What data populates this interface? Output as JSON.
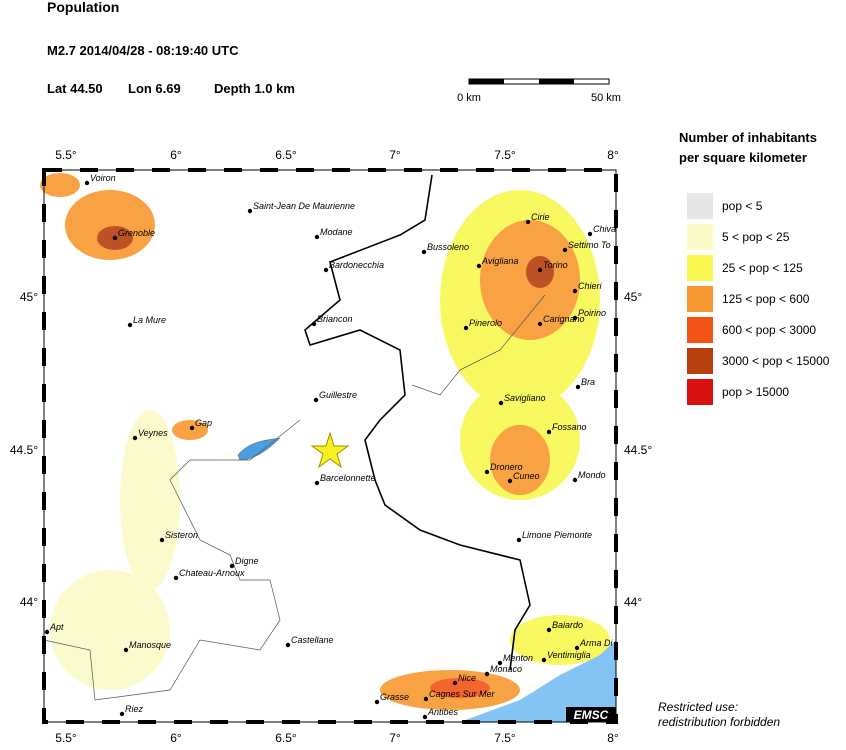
{
  "header": {
    "title": "Population",
    "event": "M2.7  2014/04/28 - 08:19:40 UTC",
    "lat": "Lat 44.50",
    "lon": "Lon 6.69",
    "depth": "Depth  1.0 km"
  },
  "scale": {
    "start": "0 km",
    "end": "50 km"
  },
  "legend": {
    "title": [
      "Number of inhabitants",
      "per square kilometer"
    ],
    "items": [
      {
        "label": "pop < 5",
        "color": "#e6e6e6"
      },
      {
        "label": "5 < pop < 25",
        "color": "#fafac8"
      },
      {
        "label": "25 < pop < 125",
        "color": "#f8f850"
      },
      {
        "label": "125 < pop < 600",
        "color": "#f89830"
      },
      {
        "label": "600 < pop < 3000",
        "color": "#f25418"
      },
      {
        "label": "3000 < pop < 15000",
        "color": "#b84010"
      },
      {
        "label": "pop > 15000",
        "color": "#d81010"
      }
    ]
  },
  "lon_labels": [
    "5.5°",
    "6°",
    "6.5°",
    "7°",
    "7.5°",
    "8°"
  ],
  "lat_labels": [
    "45°",
    "44.5°",
    "44°"
  ],
  "cities": [
    "Voiron",
    "Grenoble",
    "Saint-Jean De Maurienne",
    "Modane",
    "Bardonecchia",
    "La Mure",
    "Briancon",
    "Guillestre",
    "Veynes",
    "Gap",
    "Barcelonnette",
    "Sisteron",
    "Digne",
    "Chateau-Arnoux",
    "Apt",
    "Manosque",
    "Castellane",
    "Riez",
    "Grasse",
    "Cagnes Sur Mer",
    "Antibes",
    "Nice",
    "Monaco",
    "Menton",
    "Ventimiglia",
    "Bussoleno",
    "Avigliana",
    "Cirie",
    "Chiva",
    "Settimo To",
    "Torino",
    "Chieri",
    "Pinerolo",
    "Carignano",
    "Poirino",
    "Savigliano",
    "Bra",
    "Fossano",
    "Dronero",
    "Cuneo",
    "Mondo",
    "Limone Piemonte",
    "Baiardo",
    "Arma Di"
  ],
  "footer": {
    "notice": [
      "Restricted use:",
      "redistribution forbidden"
    ],
    "logo": "EMSC"
  }
}
